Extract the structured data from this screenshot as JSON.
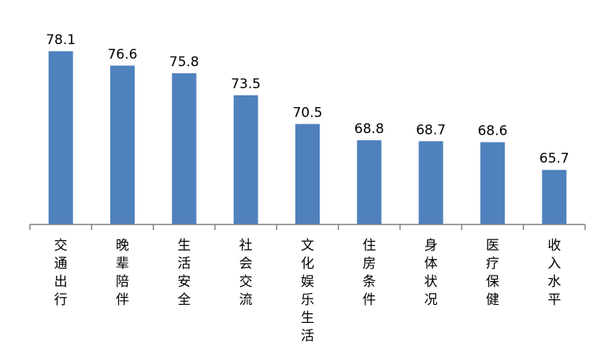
{
  "chart_data": {
    "type": "bar",
    "title": "",
    "xlabel": "",
    "ylabel": "",
    "categories": [
      "交通出行",
      "晚辈陪伴",
      "生活安全",
      "社会交流",
      "文化娱乐生活",
      "住房条件",
      "身体状况",
      "医疗保健",
      "收入水平"
    ],
    "values": [
      78.1,
      76.6,
      75.8,
      73.5,
      70.5,
      68.8,
      68.7,
      68.6,
      65.7
    ],
    "grid": false,
    "legend": "none",
    "colors": {
      "bar": "#4f81bd",
      "axis": "#808080"
    }
  }
}
